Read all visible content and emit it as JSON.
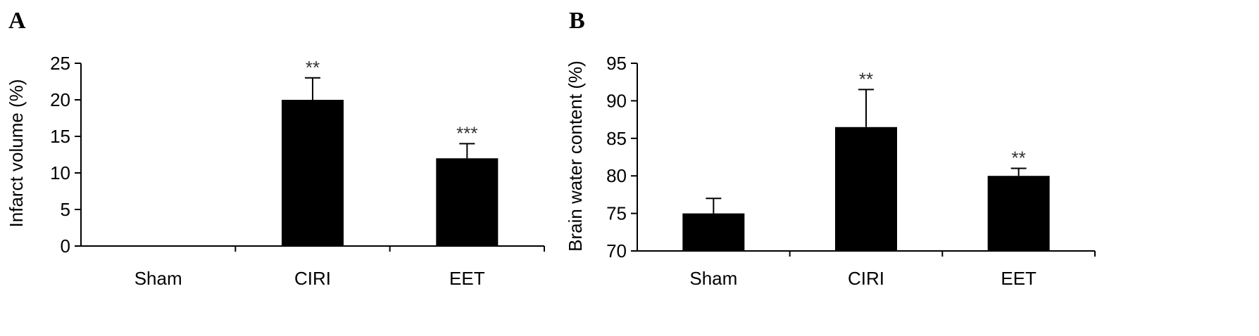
{
  "chart_data": [
    {
      "type": "bar",
      "panel_label": "A",
      "title": "",
      "xlabel": "",
      "ylabel": "Infarct volume (%)",
      "ylim": [
        0,
        25
      ],
      "yticks": [
        0,
        5,
        10,
        15,
        20,
        25
      ],
      "categories": [
        "Sham",
        "CIRI",
        "EET"
      ],
      "values": [
        0,
        20,
        12
      ],
      "errors": [
        0,
        3,
        2
      ],
      "annotations": [
        "",
        "**",
        "***"
      ],
      "bar_color": "#000000",
      "grid": false
    },
    {
      "type": "bar",
      "panel_label": "B",
      "title": "",
      "xlabel": "",
      "ylabel": "Brain water content (%)",
      "ylim": [
        70,
        95
      ],
      "yticks": [
        70,
        75,
        80,
        85,
        90,
        95
      ],
      "categories": [
        "Sham",
        "CIRI",
        "EET"
      ],
      "values": [
        75,
        86.5,
        80
      ],
      "errors": [
        2,
        5,
        1
      ],
      "annotations": [
        "",
        "**",
        "**"
      ],
      "bar_color": "#000000",
      "grid": false
    }
  ]
}
